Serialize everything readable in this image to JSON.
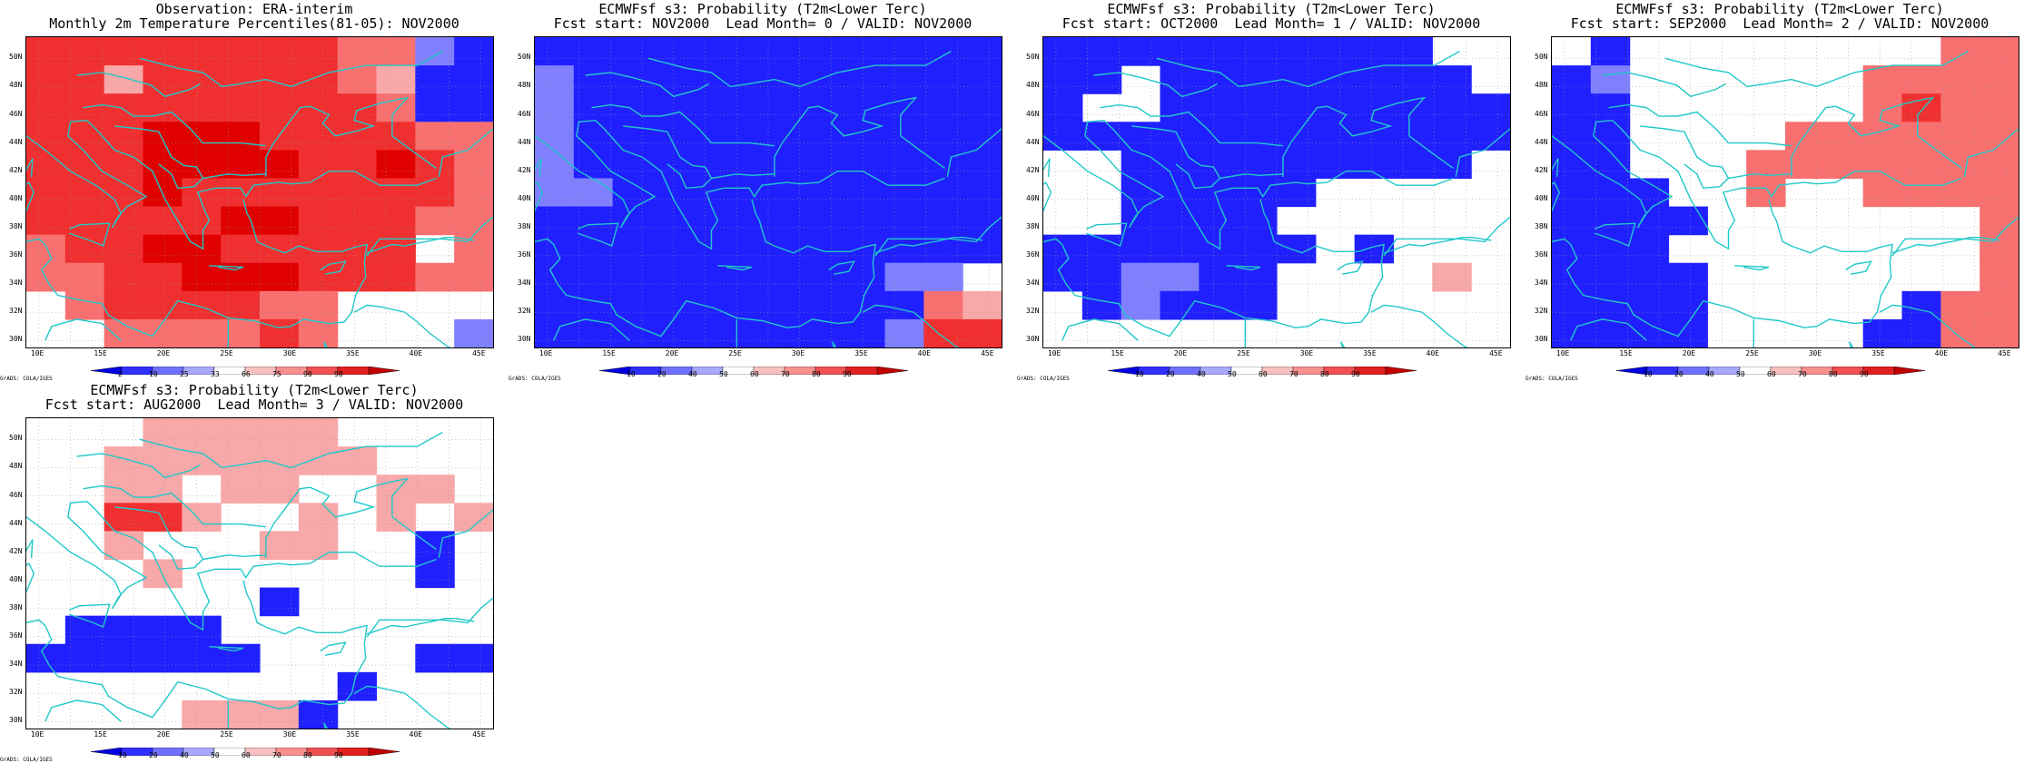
{
  "panels": [
    {
      "id": "obs",
      "title1": "Observation: ERA-interim",
      "title2": "Monthly 2m Temperature Percentiles(81-05): NOV2000",
      "legend_labels": [
        "2",
        "10",
        "25",
        "33",
        "66",
        "75",
        "90",
        "98"
      ],
      "legend_type": "percentile",
      "grid": [
        "RRRRRRRRrrbB",
        "RRpRRRRRrpBB",
        "RRRRRRRRRrBB",
        "RRRDDDRRRRrr",
        "RRRDDDDRRDRr",
        "RRRDRRRRRRRr",
        "RRRRRDDRRRrr",
        "rRRDDRRRRRwr",
        "rrRRDDDRRRrr",
        "wrRRRRrrwwww",
        "wwrrrrRrwwwb"
      ]
    },
    {
      "id": "lead0",
      "title1": "ECMWFsf s3: Probability (T2m<Lower Terc)",
      "title2": "Fcst start: NOV2000  Lead Month= 0 / VALID: NOV2000",
      "legend_labels": [
        "10",
        "20",
        "40",
        "50",
        "60",
        "70",
        "80",
        "90"
      ],
      "legend_type": "prob",
      "grid": [
        "BBBBBBBBBBBB",
        "bBBBBBBBBBBB",
        "bBBBBBBBBBBB",
        "bBBBBBBBBBBB",
        "bBBBBBBBBBBB",
        "bbBBBBBBBBBB",
        "BBBBBBBBBBBB",
        "BBBBBBBBBBBB",
        "BBBBBBBBBbbw",
        "BBBBBBBBBBrp",
        "BBBBBBBBBbRR"
      ]
    },
    {
      "id": "lead1",
      "title1": "ECMWFsf s3: Probability (T2m<Lower Terc)",
      "title2": "Fcst start: OCT2000  Lead Month= 1 / VALID: NOV2000",
      "legend_labels": [
        "10",
        "20",
        "40",
        "50",
        "60",
        "70",
        "80",
        "90"
      ],
      "legend_type": "prob",
      "grid": [
        "BBBBBBBBBBww",
        "BBwBBBBBBBBw",
        "BwwBBBBBBBBB",
        "BBBBBBBBBBBB",
        "wwBBBBBBBBBw",
        "wwBBBBBwwwww",
        "wwBBBBwwwwww",
        "BBBBBBBwBwww",
        "BBbbBBwwwwpw",
        "wBbBBBwwwwww",
        "wwwwwwwwwwww"
      ]
    },
    {
      "id": "lead2",
      "title1": "ECMWFsf s3: Probability (T2m<Lower Terc)",
      "title2": "Fcst start: SEP2000  Lead Month= 2 / VALID: NOV2000",
      "legend_labels": [
        "10",
        "20",
        "40",
        "50",
        "60",
        "70",
        "80",
        "90"
      ],
      "legend_type": "prob",
      "grid": [
        "wBwwwwwwwwrr",
        "Bbwwwwwwrrrr",
        "BBwwwwwwrRrr",
        "BBwwwwrrrrrr",
        "BBwwwrrrrrrr",
        "BBBwwrwwrrrr",
        "BBBBwwwwwwwr",
        "BBBwwwwwwwwr",
        "BBBBwwwwwwwr",
        "BBBBwwwwwBrr",
        "BBBBwwwwBBrr"
      ]
    },
    {
      "id": "lead3",
      "title1": "ECMWFsf s3: Probability (T2m<Lower Terc)",
      "title2": "Fcst start: AUG2000  Lead Month= 3 / VALID: NOV2000",
      "legend_labels": [
        "10",
        "20",
        "40",
        "50",
        "60",
        "70",
        "80",
        "90"
      ],
      "legend_type": "prob",
      "grid": [
        "wwwpppppwwww",
        "wwpppppppwww",
        "wwppwppwwppw",
        "wwRRpwwpwpwp",
        "wwpwwwppwwBw",
        "wwwpwwwwwwBw",
        "wwwwwwBwwwww",
        "wBBBBwwwwwww",
        "BBBBBBwwwwBB",
        "wwwwwwwwBwww",
        "wwwwpppBwwww"
      ]
    }
  ],
  "lat_labels": [
    "50N",
    "48N",
    "46N",
    "44N",
    "42N",
    "40N",
    "38N",
    "36N",
    "34N",
    "32N",
    "30N"
  ],
  "lon_labels": [
    "10E",
    "15E",
    "20E",
    "25E",
    "30E",
    "35E",
    "40E",
    "45E"
  ],
  "credit": "GrADS: COLA/IGES",
  "colors": {
    "B": "#2020ff",
    "b": "#8080ff",
    "w": "#ffffff",
    "p": "#f8a8a8",
    "r": "#f87070",
    "R": "#f03030",
    "D": "#e00000"
  }
}
